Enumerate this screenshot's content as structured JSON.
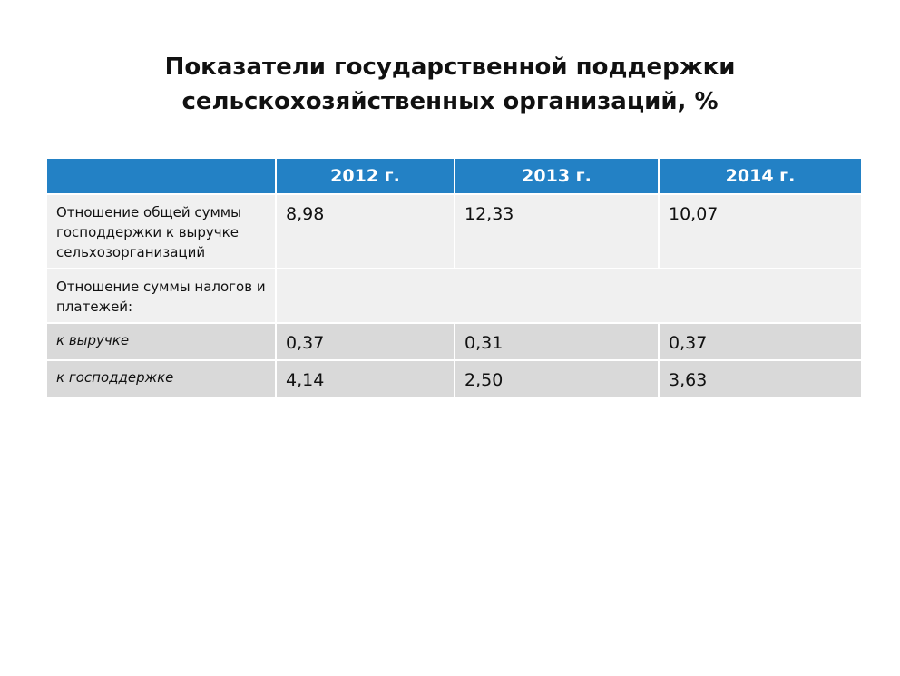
{
  "title": {
    "line1": "Показатели государственной поддержки",
    "line2": "сельскохозяйственных организаций, %"
  },
  "table": {
    "header": [
      "",
      "2012 г.",
      "2013 г.",
      "2014 г."
    ],
    "rows": [
      {
        "label": "Отношение общей суммы господдержки к выручке сельхозорганизаций",
        "values": [
          "8,98",
          "12,33",
          "10,07"
        ]
      },
      {
        "label": "Отношение суммы налогов и платежей:",
        "values": []
      },
      {
        "label": "к выручке",
        "values": [
          "0,37",
          "0,31",
          "0,37"
        ]
      },
      {
        "label": "к господдержке",
        "values": [
          "4,14",
          "2,50",
          "3,63"
        ]
      }
    ]
  },
  "colors": {
    "header_bg": "#2381c5",
    "row_light": "#f0f0f0",
    "row_dark": "#d9d9d9"
  }
}
